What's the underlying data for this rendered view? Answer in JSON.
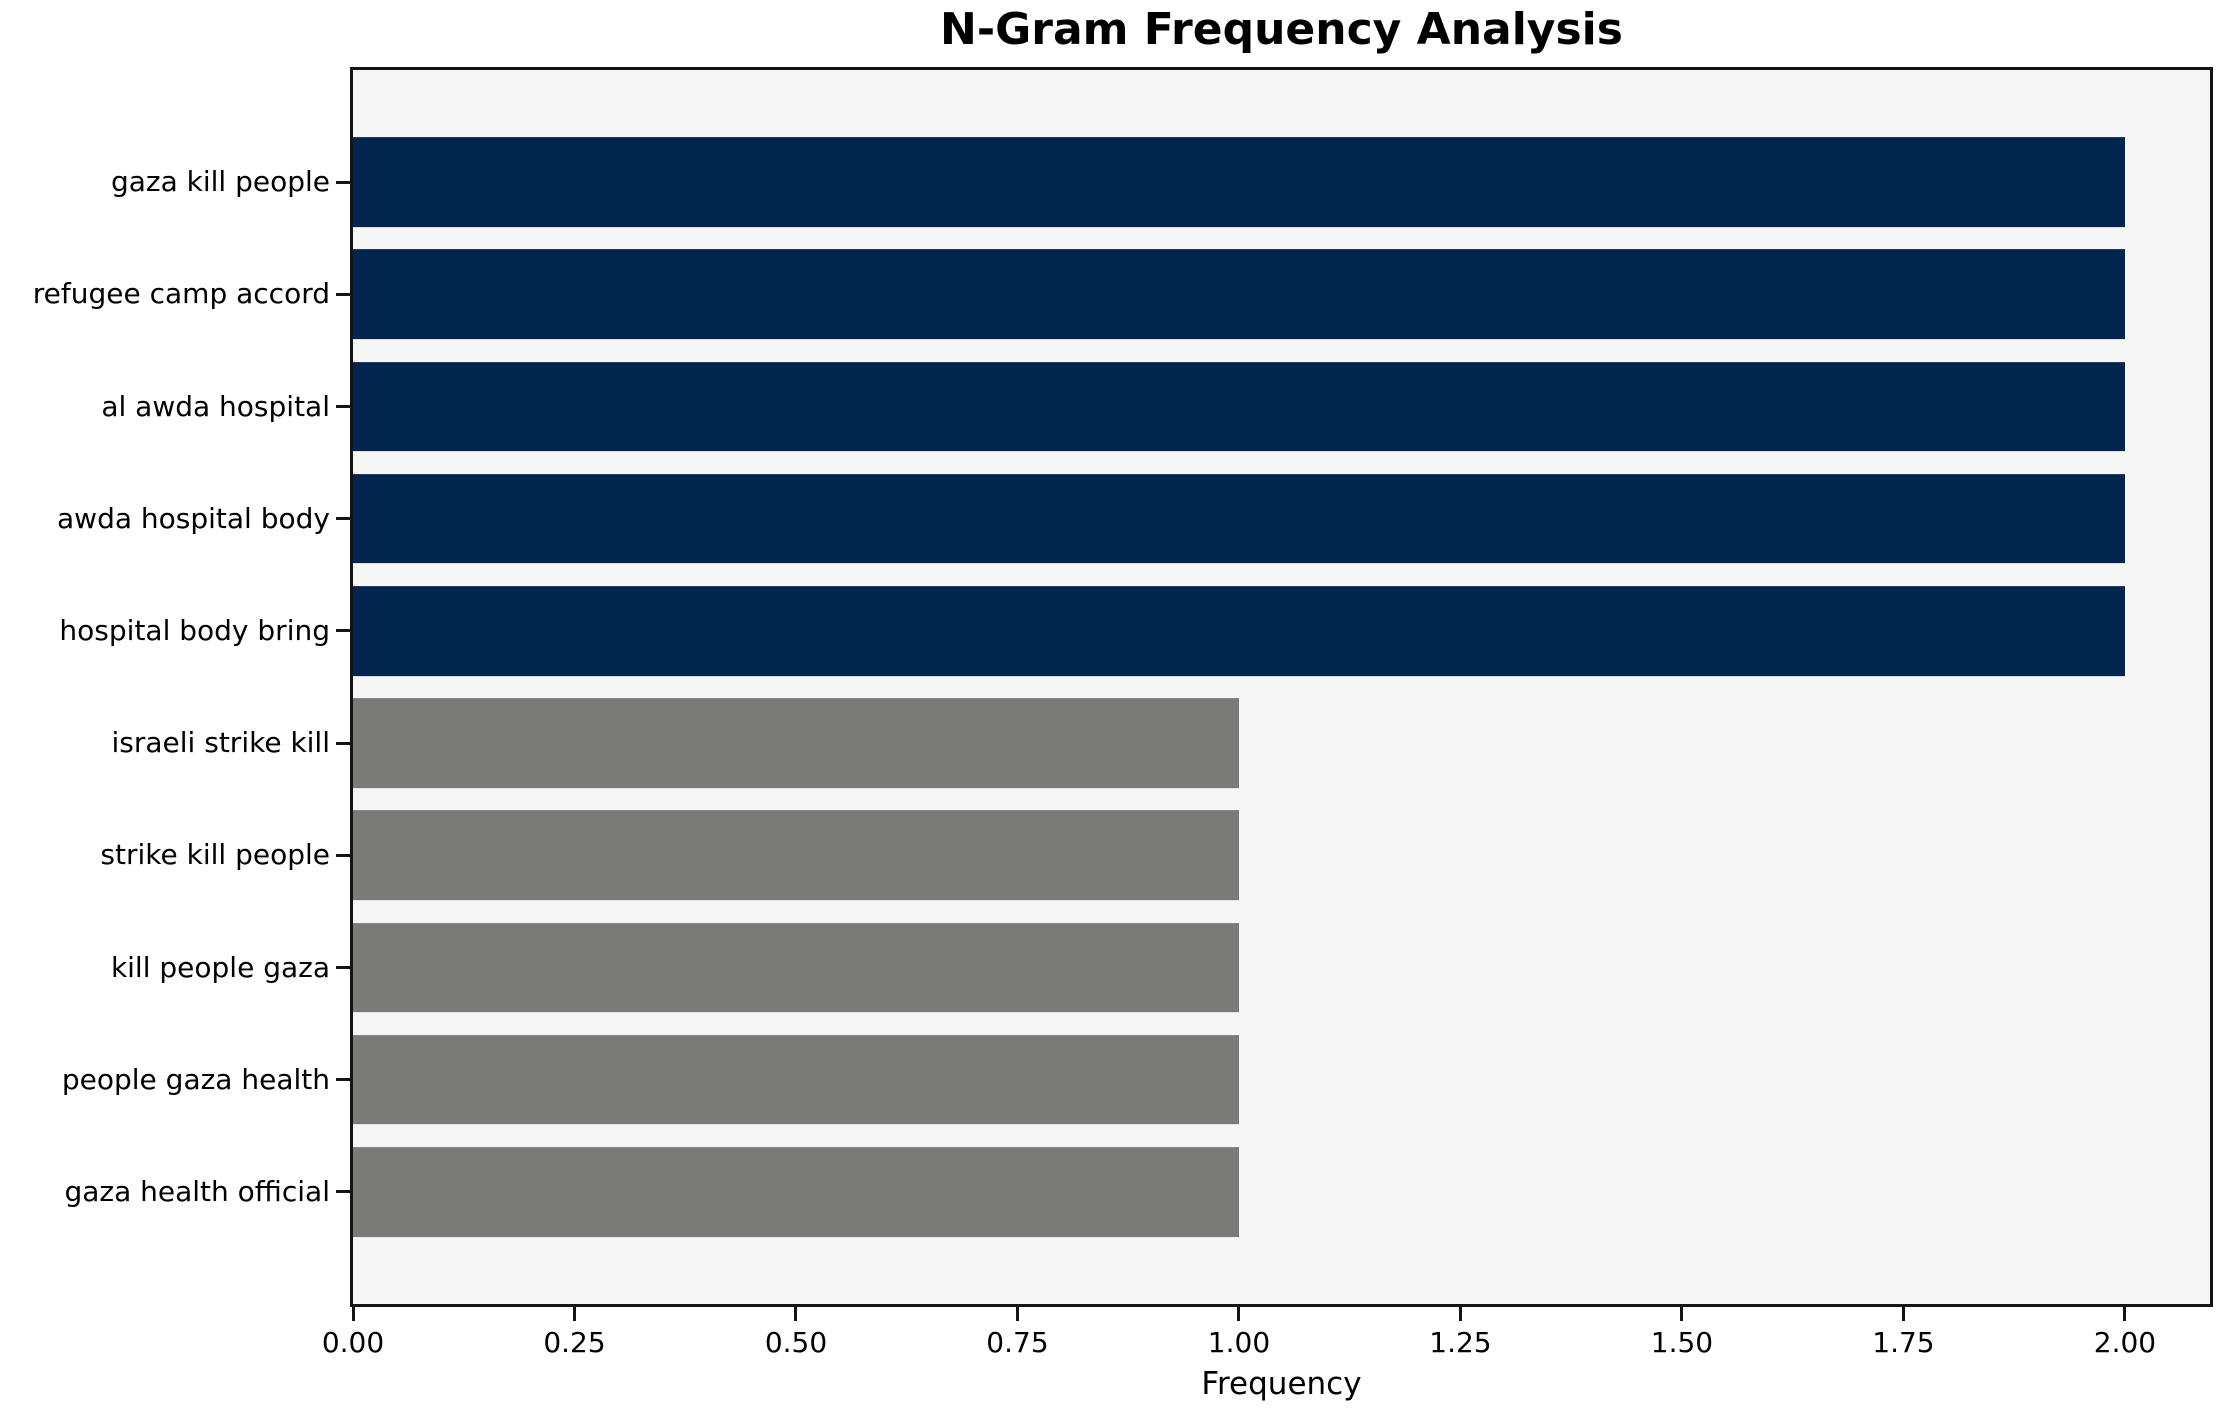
{
  "chart_data": {
    "type": "bar",
    "orientation": "horizontal",
    "title": "N-Gram Frequency Analysis",
    "xlabel": "Frequency",
    "ylabel": "",
    "categories": [
      "gaza kill people",
      "refugee camp accord",
      "al awda hospital",
      "awda hospital body",
      "hospital body bring",
      "israeli strike kill",
      "strike kill people",
      "kill people gaza",
      "people gaza health",
      "gaza health official"
    ],
    "values": [
      2,
      2,
      2,
      2,
      2,
      1,
      1,
      1,
      1,
      1
    ],
    "bar_colors": [
      "#02254d",
      "#02254d",
      "#02254d",
      "#02254d",
      "#02254d",
      "#7a7a76",
      "#7a7a76",
      "#7a7a76",
      "#7a7a76",
      "#7a7a76"
    ],
    "xlim": [
      0,
      2.096
    ],
    "xticks": {
      "values": [
        0,
        0.25,
        0.5,
        0.75,
        1.0,
        1.25,
        1.5,
        1.75,
        2.0
      ],
      "labels": [
        "0.00",
        "0.25",
        "0.50",
        "0.75",
        "1.00",
        "1.25",
        "1.50",
        "1.75",
        "2.00"
      ]
    },
    "grid": false,
    "legend": "none",
    "bar_height_fraction": 0.8,
    "colors": {
      "highlight_bar": "#02254d",
      "regular_bar": "#7a7a76",
      "plot_background": "#f6f6f6",
      "figure_background": "#ffffff",
      "spine": "#141414",
      "text": "#000000"
    }
  }
}
